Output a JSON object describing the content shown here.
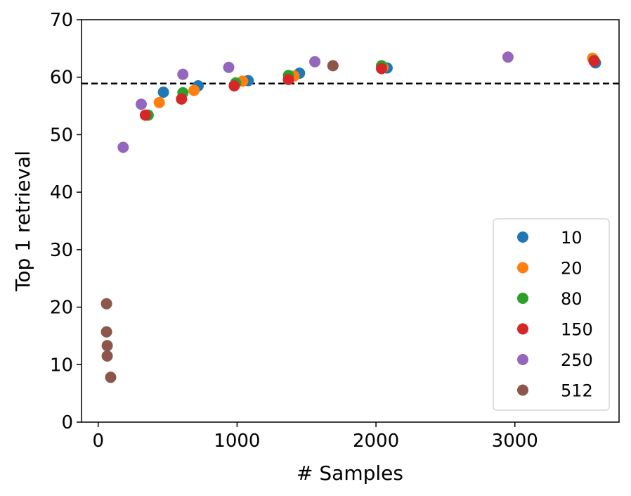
{
  "chart_data": {
    "type": "scatter",
    "title": "",
    "xlabel": "# Samples",
    "ylabel": "Top 1 retrieval",
    "xlim": [
      -120,
      3750
    ],
    "ylim": [
      0,
      70
    ],
    "xticks": [
      0,
      1000,
      2000,
      3000
    ],
    "yticks": [
      0,
      10,
      20,
      30,
      40,
      50,
      60,
      70
    ],
    "grid": false,
    "legend_position": "bottom-right",
    "reference_line": {
      "y": 58.9,
      "style": "dashed",
      "color": "#000000"
    },
    "series": [
      {
        "name": "10",
        "color": "#1f77b4",
        "points": [
          [
            470,
            57.4
          ],
          [
            720,
            58.5
          ],
          [
            1080,
            59.4
          ],
          [
            1450,
            60.7
          ],
          [
            2080,
            61.6
          ],
          [
            3580,
            62.5
          ]
        ]
      },
      {
        "name": "20",
        "color": "#ff7f0e",
        "points": [
          [
            440,
            55.6
          ],
          [
            690,
            57.7
          ],
          [
            1040,
            59.3
          ],
          [
            1410,
            60.2
          ],
          [
            2050,
            61.7
          ],
          [
            3560,
            63.3
          ]
        ]
      },
      {
        "name": "80",
        "color": "#2ca02c",
        "points": [
          [
            360,
            53.4
          ],
          [
            610,
            57.3
          ],
          [
            990,
            59.0
          ],
          [
            1370,
            60.3
          ],
          [
            2040,
            62.0
          ],
          [
            3570,
            62.9
          ]
        ]
      },
      {
        "name": "150",
        "color": "#d62728",
        "points": [
          [
            340,
            53.4
          ],
          [
            600,
            56.2
          ],
          [
            980,
            58.5
          ],
          [
            1370,
            59.6
          ],
          [
            2040,
            61.5
          ],
          [
            3570,
            62.8
          ]
        ]
      },
      {
        "name": "250",
        "color": "#9467bd",
        "points": [
          [
            180,
            47.8
          ],
          [
            310,
            55.3
          ],
          [
            610,
            60.5
          ],
          [
            940,
            61.7
          ],
          [
            1560,
            62.7
          ],
          [
            2950,
            63.5
          ]
        ]
      },
      {
        "name": "512",
        "color": "#8c564b",
        "points": [
          [
            60,
            20.6
          ],
          [
            60,
            15.7
          ],
          [
            65,
            13.3
          ],
          [
            65,
            11.5
          ],
          [
            90,
            7.8
          ],
          [
            1690,
            62.0
          ]
        ]
      }
    ]
  }
}
